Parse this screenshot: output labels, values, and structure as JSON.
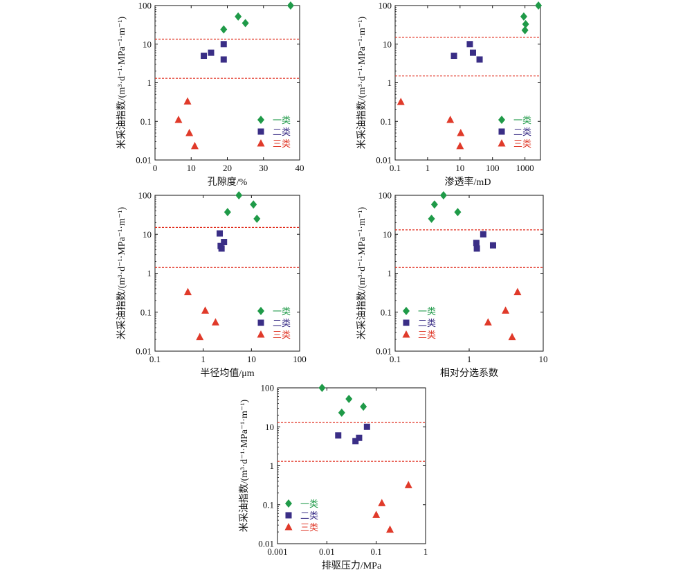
{
  "colors": {
    "class1": "#1f9a48",
    "class2": "#3a2e86",
    "class3": "#e03a2a",
    "threshold": "#e02a1a",
    "axis": "#111111"
  },
  "legend": [
    {
      "label": "一类",
      "marker": "diamond",
      "color": "#1f9a48"
    },
    {
      "label": "二类",
      "marker": "square",
      "color": "#3a2e86"
    },
    {
      "label": "三类",
      "marker": "triangle",
      "color": "#e03a2a"
    }
  ],
  "chart_data": [
    {
      "type": "scatter",
      "xlabel": "孔隙度/%",
      "ylabel": "米采油指数/(m³·d⁻¹·MPa⁻¹·m⁻¹)",
      "xscale": "linear",
      "yscale": "log",
      "xlim": [
        0,
        40
      ],
      "ylim": [
        0.01,
        100
      ],
      "xticks": [
        0,
        10,
        20,
        30,
        40
      ],
      "yticks": [
        0.01,
        0.1,
        1,
        10,
        100
      ],
      "xticklabels": [
        "0",
        "10",
        "20",
        "30",
        "40"
      ],
      "yticklabels": [
        "0.01",
        "0.1",
        "1",
        "10",
        "100"
      ],
      "thresholds": [
        13.5,
        1.3
      ],
      "legend_position": "bottom-right",
      "series": [
        {
          "name": "一类",
          "marker": "diamond",
          "x": [
            19,
            23,
            25,
            37.5
          ],
          "y": [
            24,
            52,
            35,
            100
          ]
        },
        {
          "name": "二类",
          "marker": "square",
          "x": [
            13.5,
            15.5,
            19,
            19
          ],
          "y": [
            5,
            6,
            10,
            4
          ]
        },
        {
          "name": "三类",
          "marker": "triangle",
          "x": [
            6.5,
            9,
            9.5,
            11
          ],
          "y": [
            0.11,
            0.33,
            0.05,
            0.023
          ]
        }
      ]
    },
    {
      "type": "scatter",
      "xlabel": "渗透率/mD",
      "ylabel": "米采油指数/(m³·d⁻¹·MPa⁻¹·m⁻¹)",
      "xscale": "log",
      "yscale": "log",
      "xlim": [
        0.1,
        3000
      ],
      "ylim": [
        0.01,
        100
      ],
      "xticks": [
        0.1,
        1,
        10,
        100,
        1000
      ],
      "yticks": [
        0.01,
        0.1,
        1,
        10,
        100
      ],
      "xticklabels": [
        "0.1",
        "1",
        "10",
        "100",
        "1000"
      ],
      "yticklabels": [
        "0.01",
        "0.1",
        "1",
        "10",
        "100"
      ],
      "thresholds": [
        15,
        1.5
      ],
      "legend_position": "bottom-right",
      "series": [
        {
          "name": "一类",
          "marker": "diamond",
          "x": [
            920,
            1050,
            1000,
            2600
          ],
          "y": [
            52,
            33,
            23,
            100
          ]
        },
        {
          "name": "二类",
          "marker": "square",
          "x": [
            6.5,
            20,
            25,
            40
          ],
          "y": [
            5,
            10,
            6,
            4
          ]
        },
        {
          "name": "三类",
          "marker": "triangle",
          "x": [
            0.15,
            5,
            10.5,
            10
          ],
          "y": [
            0.32,
            0.11,
            0.05,
            0.023
          ]
        }
      ]
    },
    {
      "type": "scatter",
      "xlabel": "半径均值/μm",
      "ylabel": "米采油指数/(m³·d⁻¹·MPa⁻¹·m⁻¹)",
      "xscale": "log",
      "yscale": "log",
      "xlim": [
        0.1,
        100
      ],
      "ylim": [
        0.01,
        100
      ],
      "xticks": [
        0.1,
        1,
        10,
        100
      ],
      "yticks": [
        0.01,
        0.1,
        1,
        10,
        100
      ],
      "xticklabels": [
        "0.1",
        "1",
        "10",
        "100"
      ],
      "yticklabels": [
        "0.01",
        "0.1",
        "1",
        "10",
        "100"
      ],
      "thresholds": [
        15,
        1.4
      ],
      "legend_position": "bottom-right",
      "series": [
        {
          "name": "一类",
          "marker": "diamond",
          "x": [
            3.2,
            5.5,
            11,
            13
          ],
          "y": [
            37,
            100,
            58,
            25
          ]
        },
        {
          "name": "二类",
          "marker": "square",
          "x": [
            2.2,
            2.3,
            2.4,
            2.7
          ],
          "y": [
            10.5,
            5,
            4.3,
            6.3
          ]
        },
        {
          "name": "三类",
          "marker": "triangle",
          "x": [
            0.48,
            0.85,
            1.1,
            1.8
          ],
          "y": [
            0.33,
            0.023,
            0.11,
            0.055
          ]
        }
      ]
    },
    {
      "type": "scatter",
      "xlabel": "相对分选系数",
      "ylabel": "米采油指数/(m³·d⁻¹·MPa⁻¹·m⁻¹)",
      "xscale": "log",
      "yscale": "log",
      "xlim": [
        0.1,
        10
      ],
      "ylim": [
        0.01,
        100
      ],
      "xticks": [
        0.1,
        1,
        10
      ],
      "yticks": [
        0.01,
        0.1,
        1,
        10,
        100
      ],
      "xticklabels": [
        "0.1",
        "1",
        "10"
      ],
      "yticklabels": [
        "0.01",
        "0.1",
        "1",
        "10",
        "100"
      ],
      "thresholds": [
        13,
        1.4
      ],
      "legend_position": "bottom-left",
      "series": [
        {
          "name": "一类",
          "marker": "diamond",
          "x": [
            0.31,
            0.34,
            0.45,
            0.7
          ],
          "y": [
            25,
            58,
            100,
            37
          ]
        },
        {
          "name": "二类",
          "marker": "square",
          "x": [
            1.25,
            1.27,
            1.55,
            2.1
          ],
          "y": [
            6,
            4.3,
            10,
            5.2
          ]
        },
        {
          "name": "三类",
          "marker": "triangle",
          "x": [
            1.8,
            3.1,
            3.8,
            4.5
          ],
          "y": [
            0.055,
            0.11,
            0.023,
            0.33
          ]
        }
      ]
    },
    {
      "type": "scatter",
      "xlabel": "排驱压力/MPa",
      "ylabel": "米采油指数/(m³·d⁻¹·MPa⁻¹·m⁻¹)",
      "xscale": "log",
      "yscale": "log",
      "xlim": [
        0.001,
        1
      ],
      "ylim": [
        0.01,
        100
      ],
      "xticks": [
        0.001,
        0.01,
        0.1,
        1
      ],
      "yticks": [
        0.01,
        0.1,
        1,
        10,
        100
      ],
      "xticklabels": [
        "0.001",
        "0.01",
        "0.1",
        "1"
      ],
      "yticklabels": [
        "0.01",
        "0.1",
        "1",
        "10",
        "100"
      ],
      "thresholds": [
        13,
        1.3
      ],
      "legend_position": "bottom-left",
      "series": [
        {
          "name": "一类",
          "marker": "diamond",
          "x": [
            0.008,
            0.02,
            0.028,
            0.055
          ],
          "y": [
            100,
            23,
            52,
            33
          ]
        },
        {
          "name": "二类",
          "marker": "square",
          "x": [
            0.017,
            0.038,
            0.045,
            0.065
          ],
          "y": [
            6,
            4.3,
            5.2,
            10
          ]
        },
        {
          "name": "三类",
          "marker": "triangle",
          "x": [
            0.1,
            0.13,
            0.19,
            0.45
          ],
          "y": [
            0.055,
            0.11,
            0.023,
            0.32
          ]
        }
      ]
    }
  ]
}
